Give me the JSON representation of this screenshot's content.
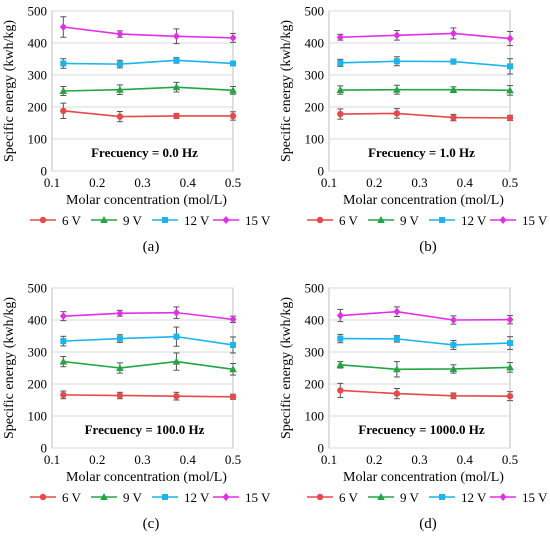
{
  "chart_data": [
    {
      "panel_label": "(a)",
      "type": "line",
      "annotation": "Frecuency = 0.0 Hz",
      "xlabel": "Molar concentration (mol/L)",
      "ylabel": "Specific energy (kwh/kg)",
      "xlim": [
        0.1,
        0.5
      ],
      "ylim": [
        0,
        500
      ],
      "xticks": [
        "0.1",
        "0.2",
        "0.3",
        "0.4",
        "0.5"
      ],
      "yticks": [
        "0",
        "100",
        "200",
        "300",
        "400",
        "500"
      ],
      "grid": true,
      "legend_position": "bottom",
      "x": [
        0.125,
        0.25,
        0.375,
        0.5
      ],
      "series": [
        {
          "name": "6 V",
          "color": "#e8484a",
          "marker": "circle",
          "values": [
            188,
            170,
            172,
            172
          ],
          "errors": [
            24,
            16,
            8,
            13
          ]
        },
        {
          "name": "9 V",
          "color": "#22a542",
          "marker": "triangle",
          "values": [
            250,
            254,
            262,
            252
          ],
          "errors": [
            14,
            15,
            15,
            12
          ]
        },
        {
          "name": "12 V",
          "color": "#1cb4ec",
          "marker": "square",
          "values": [
            336,
            334,
            346,
            336
          ],
          "errors": [
            15,
            12,
            9,
            7
          ]
        },
        {
          "name": "15 V",
          "color": "#e32ee8",
          "marker": "diamond",
          "values": [
            450,
            428,
            421,
            416
          ],
          "errors": [
            32,
            10,
            23,
            14
          ]
        }
      ]
    },
    {
      "panel_label": "(b)",
      "type": "line",
      "annotation": "Frecuency = 1.0 Hz",
      "xlabel": "Molar concentration (mol/L)",
      "ylabel": "Specific energy (kwh/kg)",
      "xlim": [
        0.1,
        0.5
      ],
      "ylim": [
        0,
        500
      ],
      "xticks": [
        "0.1",
        "0.2",
        "0.3",
        "0.4",
        "0.5"
      ],
      "yticks": [
        "0",
        "100",
        "200",
        "300",
        "400",
        "500"
      ],
      "grid": true,
      "legend_position": "bottom",
      "x": [
        0.125,
        0.25,
        0.375,
        0.5
      ],
      "series": [
        {
          "name": "6 V",
          "color": "#e8484a",
          "marker": "circle",
          "values": [
            178,
            180,
            167,
            166
          ],
          "errors": [
            16,
            15,
            10,
            8
          ]
        },
        {
          "name": "9 V",
          "color": "#22a542",
          "marker": "triangle",
          "values": [
            253,
            254,
            254,
            252
          ],
          "errors": [
            13,
            14,
            9,
            15
          ]
        },
        {
          "name": "12 V",
          "color": "#1cb4ec",
          "marker": "square",
          "values": [
            338,
            343,
            342,
            327
          ],
          "errors": [
            11,
            14,
            8,
            24
          ]
        },
        {
          "name": "15 V",
          "color": "#e32ee8",
          "marker": "diamond",
          "values": [
            418,
            424,
            430,
            414
          ],
          "errors": [
            9,
            15,
            17,
            22
          ]
        }
      ]
    },
    {
      "panel_label": "(c)",
      "type": "line",
      "annotation": "Frecuency = 100.0 Hz",
      "xlabel": "Molar concentration (mol/L)",
      "ylabel": "Specific energy (kwh/kg)",
      "xlim": [
        0.1,
        0.5
      ],
      "ylim": [
        0,
        500
      ],
      "xticks": [
        "0.1",
        "0.2",
        "0.3",
        "0.4",
        "0.5"
      ],
      "yticks": [
        "0",
        "100",
        "200",
        "300",
        "400",
        "500"
      ],
      "grid": true,
      "legend_position": "bottom",
      "x": [
        0.125,
        0.25,
        0.375,
        0.5
      ],
      "series": [
        {
          "name": "6 V",
          "color": "#e8484a",
          "marker": "circle",
          "values": [
            166,
            164,
            162,
            160
          ],
          "errors": [
            12,
            10,
            12,
            8
          ]
        },
        {
          "name": "9 V",
          "color": "#22a542",
          "marker": "triangle",
          "values": [
            270,
            250,
            270,
            246
          ],
          "errors": [
            16,
            16,
            27,
            18
          ]
        },
        {
          "name": "12 V",
          "color": "#1cb4ec",
          "marker": "square",
          "values": [
            334,
            342,
            348,
            322
          ],
          "errors": [
            15,
            12,
            30,
            25
          ]
        },
        {
          "name": "15 V",
          "color": "#e32ee8",
          "marker": "diamond",
          "values": [
            412,
            421,
            423,
            402
          ],
          "errors": [
            14,
            9,
            18,
            10
          ]
        }
      ]
    },
    {
      "panel_label": "(d)",
      "type": "line",
      "annotation": "Frecuency = 1000.0 Hz",
      "xlabel": "Molar concentration (mol/L)",
      "ylabel": "Specific energy (kwh/kg)",
      "xlim": [
        0.1,
        0.5
      ],
      "ylim": [
        0,
        500
      ],
      "xticks": [
        "0.1",
        "0.2",
        "0.3",
        "0.4",
        "0.5"
      ],
      "yticks": [
        "0",
        "100",
        "200",
        "300",
        "400",
        "500"
      ],
      "grid": true,
      "legend_position": "bottom",
      "x": [
        0.125,
        0.25,
        0.375,
        0.5
      ],
      "series": [
        {
          "name": "6 V",
          "color": "#e8484a",
          "marker": "circle",
          "values": [
            180,
            170,
            163,
            162
          ],
          "errors": [
            22,
            16,
            9,
            14
          ]
        },
        {
          "name": "9 V",
          "color": "#22a542",
          "marker": "triangle",
          "values": [
            260,
            246,
            247,
            252
          ],
          "errors": [
            10,
            24,
            13,
            15
          ]
        },
        {
          "name": "12 V",
          "color": "#1cb4ec",
          "marker": "square",
          "values": [
            342,
            341,
            322,
            328
          ],
          "errors": [
            13,
            10,
            14,
            20
          ]
        },
        {
          "name": "15 V",
          "color": "#e32ee8",
          "marker": "diamond",
          "values": [
            414,
            426,
            400,
            401
          ],
          "errors": [
            19,
            15,
            13,
            13
          ]
        }
      ]
    }
  ]
}
